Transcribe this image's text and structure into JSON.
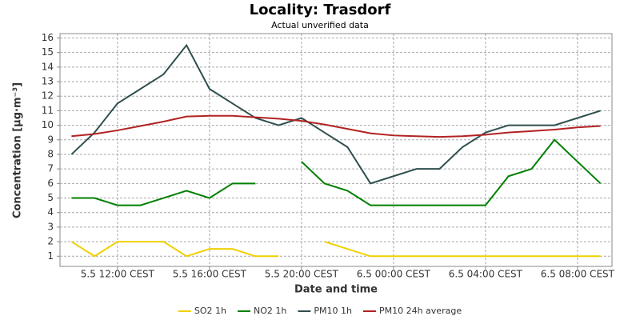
{
  "chart_data": {
    "type": "line",
    "title": "Locality: Trasdorf",
    "subtitle": "Actual unverified data",
    "x_label": "Date and time",
    "y_label": "Concentration [µg·m⁻³]",
    "x": [
      10,
      11,
      12,
      13,
      14,
      15,
      16,
      17,
      18,
      19,
      20,
      21,
      22,
      23,
      24,
      25,
      26,
      27,
      28,
      29,
      30,
      31,
      32,
      33
    ],
    "xlim": [
      9.5,
      33.5
    ],
    "xticks": [
      {
        "value": 12,
        "label": "5.5 12:00 CEST"
      },
      {
        "value": 16,
        "label": "5.5 16:00 CEST"
      },
      {
        "value": 20,
        "label": "5.5 20:00 CEST"
      },
      {
        "value": 24,
        "label": "6.5 00:00 CEST"
      },
      {
        "value": 28,
        "label": "6.5 04:00 CEST"
      },
      {
        "value": 32,
        "label": "6.5 08:00 CEST"
      }
    ],
    "ylim": [
      0.3,
      16.3
    ],
    "yticks": [
      1,
      2,
      3,
      4,
      5,
      6,
      7,
      8,
      9,
      10,
      11,
      12,
      13,
      14,
      15,
      16
    ],
    "grid": true,
    "legend": "bottom",
    "series": [
      {
        "name": "SO2 1h",
        "color": "#f0d000",
        "values": [
          2,
          1,
          2,
          2,
          2,
          1,
          1.5,
          1.5,
          1,
          1,
          null,
          2,
          1.5,
          1,
          1,
          1,
          1,
          1,
          1,
          1,
          1,
          1,
          1,
          1
        ]
      },
      {
        "name": "NO2 1h",
        "color": "#008000",
        "values": [
          5,
          5,
          4.5,
          4.5,
          5,
          5.5,
          5,
          6,
          6,
          null,
          7.5,
          6,
          5.5,
          4.5,
          4.5,
          4.5,
          4.5,
          4.5,
          4.5,
          6.5,
          7,
          9,
          7.5,
          6
        ]
      },
      {
        "name": "PM10 1h",
        "color": "#2f4f4f",
        "values": [
          8,
          9.5,
          11.5,
          12.5,
          13.5,
          15.5,
          12.5,
          11.5,
          10.5,
          10,
          10.5,
          9.5,
          8.5,
          6,
          6.5,
          7,
          7,
          8.5,
          9.5,
          10,
          10,
          10,
          10.5,
          11
        ]
      },
      {
        "name": "PM10 24h average",
        "color": "#b22222",
        "values": [
          9.25,
          9.4,
          9.65,
          9.95,
          10.25,
          10.6,
          10.65,
          10.65,
          10.55,
          10.45,
          10.3,
          10.05,
          9.75,
          9.45,
          9.3,
          9.25,
          9.2,
          9.25,
          9.35,
          9.5,
          9.6,
          9.7,
          9.85,
          9.95
        ]
      }
    ]
  }
}
